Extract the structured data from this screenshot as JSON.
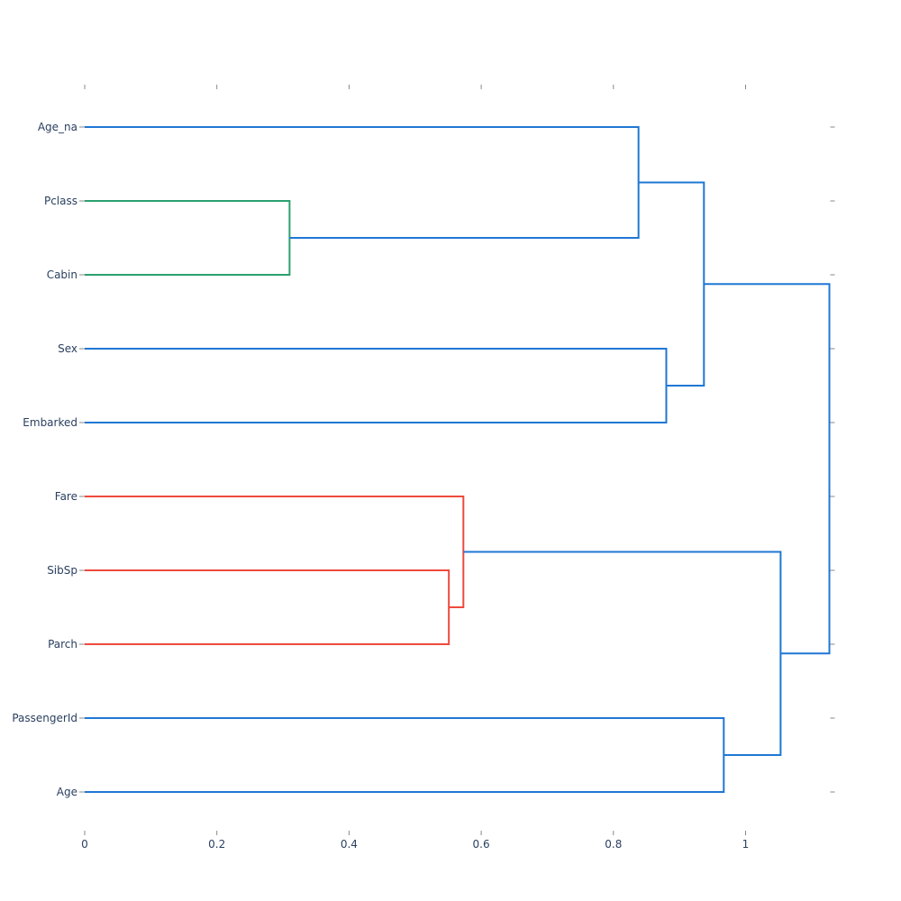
{
  "chart_data": {
    "type": "dendrogram",
    "orientation": "horizontal",
    "title": "",
    "xlabel": "",
    "ylabel": "",
    "xlim": [
      0,
      1.1268
    ],
    "x_ticks": [
      0,
      0.2,
      0.4,
      0.6,
      0.8,
      1
    ],
    "x_tick_labels": [
      "0",
      "0.2",
      "0.4",
      "0.6",
      "0.8",
      "1"
    ],
    "leaves": [
      "Age_na",
      "Pclass",
      "Cabin",
      "Sex",
      "Embarked",
      "Fare",
      "SibSp",
      "Parch",
      "PassengerId",
      "Age"
    ],
    "colors": {
      "blue": "#1f77d4",
      "green": "#2ca06f",
      "red": "#ef4a3c"
    },
    "links": [
      {
        "left": "Pclass",
        "right": "Cabin",
        "height": 0.31,
        "color": "green"
      },
      {
        "left": "Sex",
        "right": "Embarked",
        "height": 0.88,
        "color": "blue"
      },
      {
        "left": "Age_na",
        "right": "Pclass+Cabin",
        "height": 0.838,
        "color": "blue"
      },
      {
        "left": "Age_na+Pclass+Cabin",
        "right": "Sex+Embarked",
        "height": 0.937,
        "color": "blue"
      },
      {
        "left": "SibSp",
        "right": "Parch",
        "height": 0.551,
        "color": "red"
      },
      {
        "left": "Fare",
        "right": "SibSp+Parch",
        "height": 0.573,
        "color": "red"
      },
      {
        "left": "PassengerId",
        "right": "Age",
        "height": 0.967,
        "color": "blue"
      },
      {
        "left": "Fare+SibSp+Parch",
        "right": "PassengerId+Age",
        "height": 1.053,
        "color": "blue"
      },
      {
        "left": "Age_na..Embarked",
        "right": "Fare..Age",
        "height": 1.1268,
        "color": "blue"
      }
    ]
  }
}
